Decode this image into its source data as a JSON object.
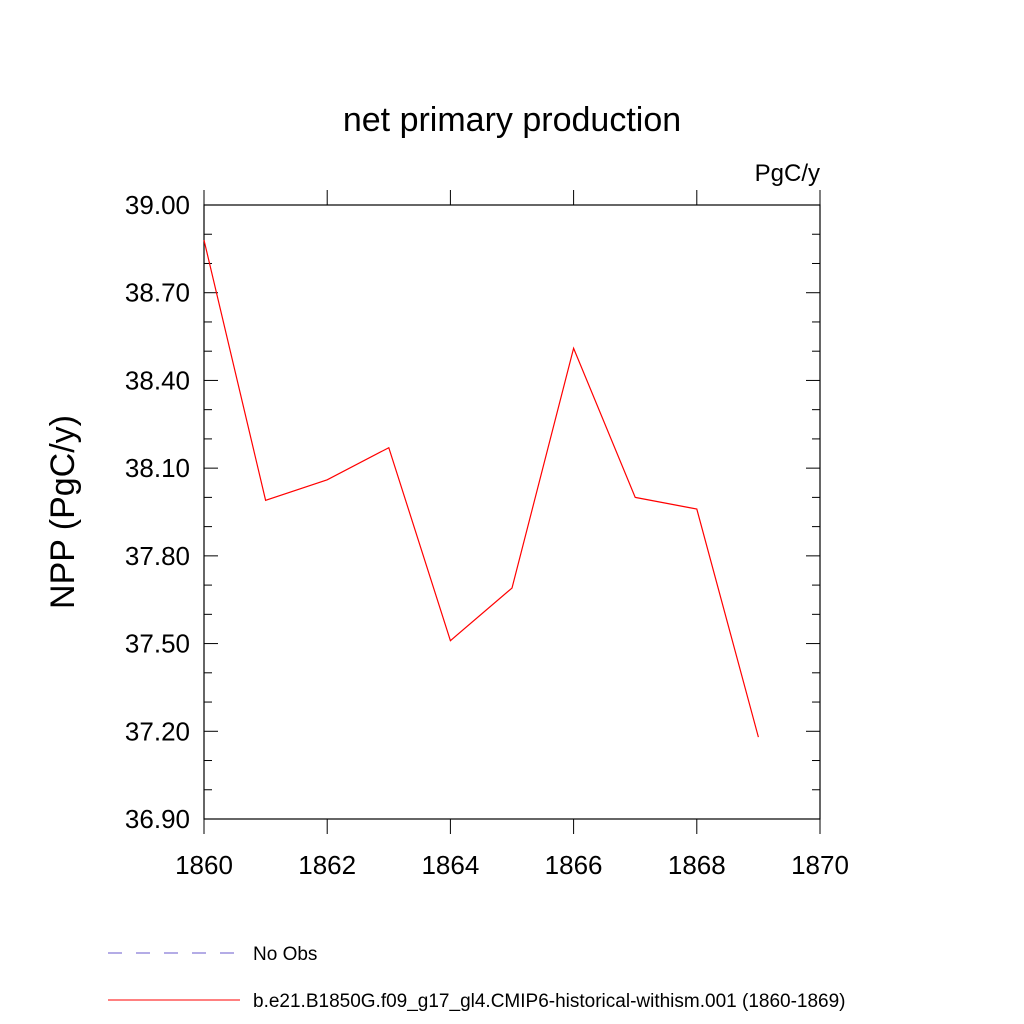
{
  "chart_data": {
    "type": "line",
    "title": "net primary production",
    "units": "PgC/y",
    "xlabel": "",
    "ylabel": "NPP  (PgC/y)",
    "xlim": [
      1860,
      1870
    ],
    "ylim": [
      36.9,
      39.0
    ],
    "x_ticks": [
      "1860",
      "1862",
      "1864",
      "1866",
      "1868",
      "1870"
    ],
    "y_ticks": [
      "36.90",
      "37.20",
      "37.50",
      "37.80",
      "38.10",
      "38.40",
      "38.70",
      "39.00"
    ],
    "grid": false,
    "legend_position": "bottom",
    "colors": {
      "series": "#ff0000",
      "obs": "#6a5acd",
      "axis": "#000000"
    },
    "legend": [
      {
        "label": "No Obs",
        "style": "dashed",
        "color": "#6a5acd"
      },
      {
        "label": "b.e21.B1850G.f09_g17_gl4.CMIP6-historical-withism.001 (1860-1869)",
        "style": "solid",
        "color": "#ff0000"
      }
    ],
    "series": [
      {
        "x": [
          1860,
          1861,
          1862,
          1863,
          1864,
          1865,
          1866,
          1867,
          1868,
          1869
        ],
        "values": [
          38.88,
          37.99,
          38.06,
          38.17,
          37.51,
          37.69,
          38.51,
          38.0,
          37.96,
          37.18
        ]
      }
    ]
  }
}
